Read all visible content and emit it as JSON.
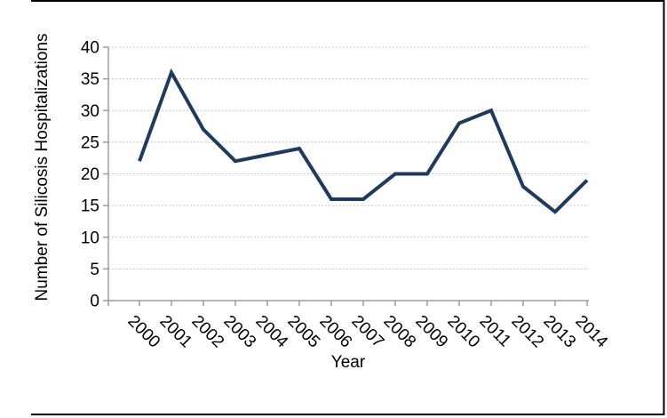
{
  "chart_data": {
    "type": "line",
    "title": "",
    "xlabel": "Year",
    "ylabel": "Number of Silicosis Hospitalizations",
    "categories": [
      "2000",
      "2001",
      "2002",
      "2003",
      "2004",
      "2005",
      "2006",
      "2007",
      "2008",
      "2009",
      "2010",
      "2011",
      "2012",
      "2013",
      "2014"
    ],
    "values": [
      22,
      36,
      27,
      22,
      23,
      24,
      16,
      16,
      20,
      20,
      28,
      30,
      18,
      14,
      19
    ],
    "ylim": [
      0,
      40
    ],
    "yticks": [
      0,
      5,
      10,
      15,
      20,
      25,
      30,
      35,
      40
    ],
    "grid": "horizontal-dashed",
    "legend": "none",
    "colors": {
      "line": "#1f3a5f",
      "gridline": "#c7c7c7",
      "axis": "#9e9e9e",
      "text": "#000000",
      "frame": "#000000",
      "background": "#ffffff"
    }
  }
}
